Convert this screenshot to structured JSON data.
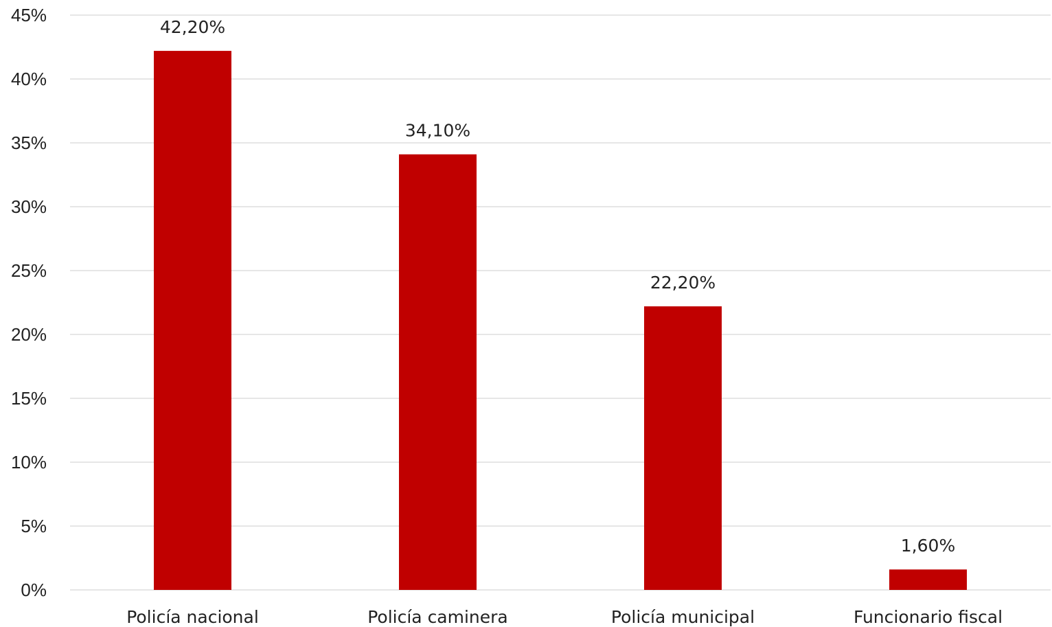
{
  "chart_data": {
    "type": "bar",
    "categories": [
      "Policía nacional",
      "Policía caminera",
      "Policía municipal",
      "Funcionario fiscal"
    ],
    "values": [
      42.2,
      34.1,
      22.2,
      1.6
    ],
    "data_labels": [
      "42,20%",
      "34,10%",
      "22,20%",
      "1,60%"
    ],
    "title": "",
    "xlabel": "",
    "ylabel": "",
    "ylim": [
      0,
      45
    ],
    "yticks": [
      0,
      5,
      10,
      15,
      20,
      25,
      30,
      35,
      40,
      45
    ],
    "ytick_labels": [
      "0%",
      "5%",
      "10%",
      "15%",
      "20%",
      "25%",
      "30%",
      "35%",
      "40%",
      "45%"
    ],
    "grid": true,
    "legend": "none",
    "colors": {
      "bar": "#c00000",
      "grid": "#e6e6e6",
      "text": "#222222"
    }
  }
}
